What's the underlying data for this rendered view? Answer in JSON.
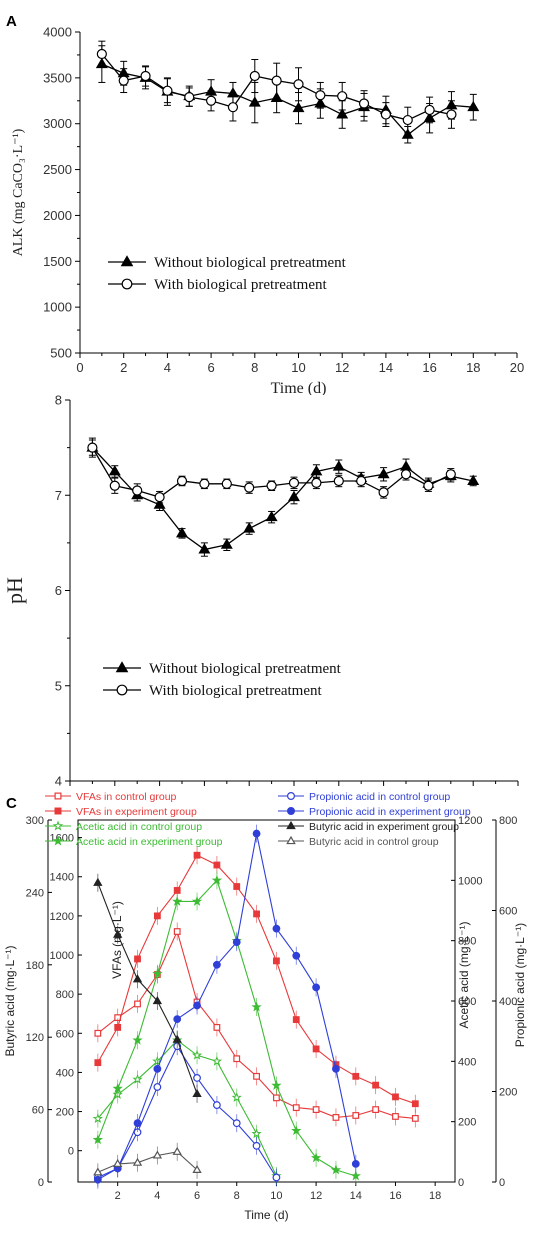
{
  "chart_data": [
    {
      "id": "A",
      "type": "line",
      "panel_label": "A",
      "xlabel": "Time (d)",
      "ylabel": "ALK (mg CaCO₃·L⁻¹)",
      "xlim": [
        0,
        20
      ],
      "ylim": [
        500,
        4000
      ],
      "xticks": [
        0,
        2,
        4,
        6,
        8,
        10,
        12,
        14,
        16,
        18,
        20
      ],
      "yticks": [
        500,
        1000,
        1500,
        2000,
        2500,
        3000,
        3500,
        4000
      ],
      "legend_placement": "lower-left",
      "grid": false,
      "series": [
        {
          "name": "Without biological pretreatment",
          "marker": "triangle-filled",
          "color": "#000000",
          "x": [
            1,
            2,
            3,
            4,
            5,
            6,
            7,
            8,
            9,
            10,
            11,
            12,
            13,
            14,
            15,
            16,
            17,
            18
          ],
          "y": [
            3650,
            3550,
            3500,
            3350,
            3300,
            3350,
            3330,
            3230,
            3280,
            3170,
            3220,
            3100,
            3180,
            3150,
            2880,
            3060,
            3200,
            3180
          ],
          "err": [
            200,
            130,
            120,
            150,
            110,
            130,
            120,
            220,
            160,
            170,
            160,
            150,
            150,
            150,
            90,
            160,
            150,
            140
          ]
        },
        {
          "name": "With biological pretreatment",
          "marker": "circle-open",
          "color": "#000000",
          "x": [
            1,
            2,
            3,
            4,
            5,
            6,
            7,
            8,
            9,
            10,
            11,
            12,
            13,
            14,
            15,
            16,
            17
          ],
          "y": [
            3760,
            3470,
            3520,
            3360,
            3290,
            3250,
            3180,
            3520,
            3470,
            3430,
            3310,
            3300,
            3220,
            3100,
            3040,
            3150,
            3100
          ],
          "err": [
            140,
            130,
            110,
            130,
            100,
            110,
            150,
            180,
            190,
            180,
            140,
            150,
            140,
            130,
            140,
            140,
            150
          ]
        }
      ]
    },
    {
      "id": "B",
      "type": "line",
      "panel_label": "B",
      "xlabel": "Time (d)",
      "ylabel": "pH",
      "xlim": [
        0,
        20
      ],
      "ylim": [
        4,
        8
      ],
      "xticks": [
        0,
        2,
        4,
        6,
        8,
        10,
        12,
        14,
        16,
        18,
        20
      ],
      "yticks": [
        4,
        5,
        6,
        7,
        8
      ],
      "legend_placement": "lower-left",
      "grid": false,
      "series": [
        {
          "name": "Without biological pretreatment",
          "marker": "triangle-filled",
          "color": "#000000",
          "x": [
            1,
            2,
            3,
            4,
            5,
            6,
            7,
            8,
            9,
            10,
            11,
            12,
            13,
            14,
            15,
            16,
            17,
            18
          ],
          "y": [
            7.5,
            7.25,
            7.0,
            6.9,
            6.6,
            6.43,
            6.48,
            6.65,
            6.77,
            6.98,
            7.25,
            7.3,
            7.18,
            7.22,
            7.3,
            7.12,
            7.2,
            7.15
          ],
          "err": [
            0.08,
            0.06,
            0.06,
            0.06,
            0.05,
            0.07,
            0.06,
            0.06,
            0.06,
            0.07,
            0.07,
            0.07,
            0.06,
            0.07,
            0.08,
            0.06,
            0.06,
            0.05
          ]
        },
        {
          "name": "With biological pretreatment",
          "marker": "circle-open",
          "color": "#000000",
          "x": [
            1,
            2,
            3,
            4,
            5,
            6,
            7,
            8,
            9,
            10,
            11,
            12,
            13,
            14,
            15,
            16,
            17
          ],
          "y": [
            7.5,
            7.1,
            7.05,
            6.98,
            7.15,
            7.12,
            7.12,
            7.08,
            7.1,
            7.13,
            7.13,
            7.15,
            7.15,
            7.03,
            7.22,
            7.1,
            7.22
          ],
          "err": [
            0.1,
            0.08,
            0.07,
            0.06,
            0.05,
            0.05,
            0.05,
            0.06,
            0.05,
            0.06,
            0.06,
            0.06,
            0.06,
            0.06,
            0.06,
            0.06,
            0.06
          ]
        }
      ]
    },
    {
      "id": "C",
      "type": "line",
      "panel_label": "C",
      "xlabel": "Time (d)",
      "xlim": [
        0,
        19
      ],
      "xticks": [
        2,
        4,
        6,
        8,
        10,
        12,
        14,
        16,
        18
      ],
      "legend_placement": "top",
      "grid": false,
      "axes": {
        "butyric": {
          "label": "Butyric acid (mg·L⁻¹)",
          "ylim": [
            0,
            300
          ],
          "ticks": [
            0,
            60,
            120,
            180,
            240,
            300
          ]
        },
        "vfas": {
          "label": "VFAs (mg·L⁻¹)",
          "ylim": [
            -160,
            1690
          ],
          "ticks": [
            0,
            200,
            400,
            600,
            800,
            1000,
            1200,
            1400,
            1600
          ]
        },
        "acetic": {
          "label": "Acetic acid (mg·L⁻¹)",
          "ylim": [
            0,
            1200
          ],
          "ticks": [
            0,
            200,
            400,
            600,
            800,
            1000,
            1200
          ]
        },
        "propionic": {
          "label": "Propionic acid (mg·L⁻¹)",
          "ylim": [
            0,
            800
          ],
          "ticks": [
            0,
            200,
            400,
            600,
            800
          ]
        }
      },
      "series": [
        {
          "name": "VFAs in control group",
          "axis": "vfas",
          "marker": "square-open",
          "color": "#e8393a",
          "dash": "none",
          "x": [
            1,
            2,
            3,
            4,
            5,
            6,
            7,
            8,
            9,
            10,
            11,
            12,
            13,
            14,
            15,
            16,
            17
          ],
          "y": [
            600,
            680,
            750,
            900,
            1120,
            760,
            630,
            470,
            380,
            270,
            220,
            210,
            170,
            180,
            210,
            175,
            165
          ]
        },
        {
          "name": "VFAs in experiment group",
          "axis": "vfas",
          "marker": "square-filled",
          "color": "#e8393a",
          "dash": "none",
          "x": [
            1,
            2,
            3,
            4,
            5,
            6,
            7,
            8,
            9,
            10,
            11,
            12,
            13,
            14,
            15,
            16,
            17
          ],
          "y": [
            450,
            630,
            980,
            1200,
            1330,
            1510,
            1460,
            1350,
            1210,
            970,
            670,
            520,
            440,
            380,
            335,
            275,
            240
          ]
        },
        {
          "name": "Acetic acid in control group",
          "axis": "acetic",
          "marker": "star-open",
          "color": "#3dbb34",
          "dash": "none",
          "x": [
            1,
            2,
            3,
            4,
            5,
            6,
            7,
            8,
            9,
            10
          ],
          "y": [
            210,
            290,
            340,
            400,
            470,
            420,
            400,
            280,
            160,
            20
          ]
        },
        {
          "name": "Acetic acid in experiment group",
          "axis": "acetic",
          "marker": "star-filled",
          "color": "#3dbb34",
          "dash": "none",
          "x": [
            1,
            2,
            3,
            4,
            5,
            6,
            7,
            8,
            9,
            10,
            11,
            12,
            13,
            14
          ],
          "y": [
            140,
            310,
            470,
            690,
            930,
            930,
            1000,
            800,
            580,
            320,
            170,
            80,
            40,
            20
          ]
        },
        {
          "name": "Propionic acid in control group",
          "axis": "propionic",
          "marker": "circle-open",
          "color": "#2f3fd8",
          "dash": "none",
          "x": [
            1,
            2,
            3,
            4,
            5,
            6,
            7,
            8,
            9,
            10
          ],
          "y": [
            10,
            30,
            110,
            210,
            300,
            230,
            170,
            130,
            80,
            10
          ]
        },
        {
          "name": "Propionic acid in experiment group",
          "axis": "propionic",
          "marker": "circle-filled",
          "color": "#2f3fd8",
          "dash": "none",
          "x": [
            1,
            2,
            3,
            4,
            5,
            6,
            7,
            8,
            9,
            10,
            11,
            12,
            13,
            14
          ],
          "y": [
            5,
            30,
            130,
            250,
            360,
            390,
            480,
            530,
            770,
            560,
            500,
            430,
            250,
            40
          ]
        },
        {
          "name": "Butyric acid in experiment group",
          "axis": "butyric",
          "marker": "triangle-filled",
          "color": "#222222",
          "dash": "none",
          "x": [
            1,
            2,
            3,
            4,
            5,
            6
          ],
          "y": [
            248,
            205,
            168,
            150,
            118,
            73
          ]
        },
        {
          "name": "Butyric acid in control group",
          "axis": "butyric",
          "marker": "triangle-open",
          "color": "#555555",
          "dash": "none",
          "x": [
            1,
            2,
            3,
            4,
            5,
            6
          ],
          "y": [
            8,
            15,
            16,
            22,
            25,
            10
          ]
        }
      ]
    }
  ]
}
